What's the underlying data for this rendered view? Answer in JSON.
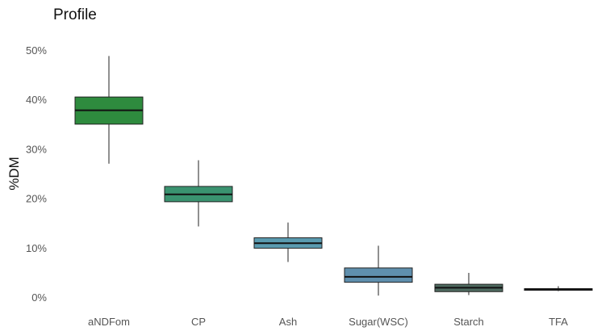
{
  "chart_data": {
    "type": "boxplot",
    "title": "Profile",
    "xlabel": "",
    "ylabel": "%DM",
    "ylim": [
      0,
      50
    ],
    "y_ticks": [
      0,
      10,
      20,
      30,
      40,
      50
    ],
    "y_tick_labels": [
      "0%",
      "10%",
      "20%",
      "30%",
      "40%",
      "50%"
    ],
    "grid": false,
    "categories": [
      "aNDFom",
      "CP",
      "Ash",
      "Sugar(WSC)",
      "Starch",
      "TFA"
    ],
    "boxes": [
      {
        "category": "aNDFom",
        "min": 27.0,
        "q1": 35.0,
        "median": 37.8,
        "q3": 40.5,
        "max": 48.8,
        "color": "#2e8b3e"
      },
      {
        "category": "CP",
        "min": 14.3,
        "q1": 19.3,
        "median": 20.8,
        "q3": 22.4,
        "max": 27.7,
        "color": "#3a9370"
      },
      {
        "category": "Ash",
        "min": 7.1,
        "q1": 9.9,
        "median": 10.9,
        "q3": 12.0,
        "max": 15.1,
        "color": "#5a9bb0"
      },
      {
        "category": "Sugar(WSC)",
        "min": 0.3,
        "q1": 3.0,
        "median": 4.1,
        "q3": 5.9,
        "max": 10.4,
        "color": "#5f8fad"
      },
      {
        "category": "Starch",
        "min": 0.4,
        "q1": 1.1,
        "median": 1.9,
        "q3": 2.6,
        "max": 4.9,
        "color": "#4e6a5f"
      },
      {
        "category": "TFA",
        "min": 1.2,
        "q1": 1.5,
        "median": 1.6,
        "q3": 1.7,
        "max": 2.2,
        "color": "#3a4a52"
      }
    ]
  }
}
